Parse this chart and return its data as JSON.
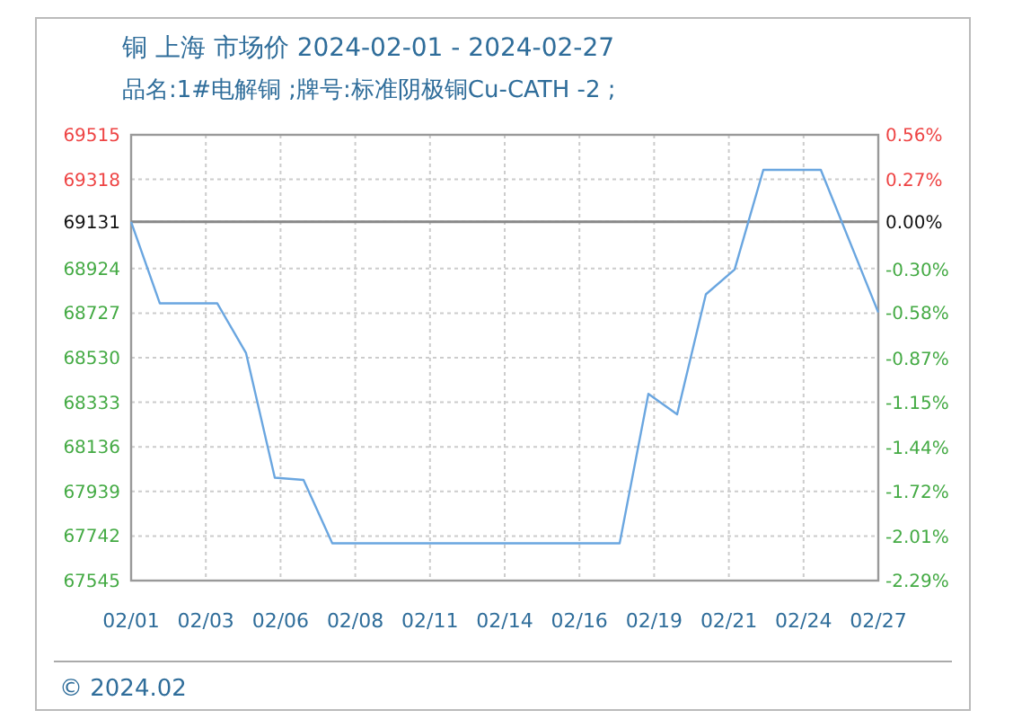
{
  "chart_data": {
    "type": "line",
    "title": "铜 上海 市场价 2024-02-01 - 2024-02-27",
    "subtitle": "品名:1#电解铜 ;牌号:标准阴极铜Cu-CATH -2 ;",
    "x": [
      "2024-02-01",
      "2024-02-02",
      "2024-02-04",
      "2024-02-05",
      "2024-02-06",
      "2024-02-07",
      "2024-02-08",
      "2024-02-18",
      "2024-02-19",
      "2024-02-20",
      "2024-02-21",
      "2024-02-22",
      "2024-02-23",
      "2024-02-25",
      "2024-02-27"
    ],
    "series": [
      {
        "color": "#6aa6e0",
        "values": [
          69130,
          68770,
          68770,
          68550,
          68000,
          67990,
          67710,
          67710,
          68370,
          68280,
          68810,
          68920,
          69360,
          69360,
          68730
        ]
      }
    ],
    "xlim": [
      "2024-02-01",
      "2024-02-27"
    ],
    "xticks": [
      {
        "value": "2024-02-01",
        "label": "02/01"
      },
      {
        "value": "2024-02-03T14:24",
        "label": "02/03"
      },
      {
        "value": "2024-02-06T04:48",
        "label": "02/06"
      },
      {
        "value": "2024-02-08T19:12",
        "label": "02/08"
      },
      {
        "value": "2024-02-11T09:36",
        "label": "02/11"
      },
      {
        "value": "2024-02-14",
        "label": "02/14"
      },
      {
        "value": "2024-02-16T14:24",
        "label": "02/16"
      },
      {
        "value": "2024-02-19T04:48",
        "label": "02/19"
      },
      {
        "value": "2024-02-21T19:12",
        "label": "02/21"
      },
      {
        "value": "2024-02-24T09:36",
        "label": "02/24"
      },
      {
        "value": "2024-02-27",
        "label": "02/27"
      }
    ],
    "ylim": [
      67545,
      69515
    ],
    "yticks": [
      67545,
      67742,
      67939,
      68136,
      68333,
      68530,
      68727,
      68924,
      69131,
      69318,
      69515
    ],
    "y2lim": [
      -2.29,
      0.56
    ],
    "y2ticks": [
      {
        "value": -2.29,
        "label": "-2.29%"
      },
      {
        "value": -2.01,
        "label": "-2.01%"
      },
      {
        "value": -1.72,
        "label": "-1.72%"
      },
      {
        "value": -1.44,
        "label": "-1.44%"
      },
      {
        "value": -1.15,
        "label": "-1.15%"
      },
      {
        "value": -0.87,
        "label": "-0.87%"
      },
      {
        "value": -0.58,
        "label": "-0.58%"
      },
      {
        "value": -0.3,
        "label": "-0.30%"
      },
      {
        "value": 0,
        "label": "0.00%"
      },
      {
        "value": 0.27,
        "label": "0.27%"
      },
      {
        "value": 0.56,
        "label": "0.56%"
      }
    ],
    "ref_lines": [
      {
        "axis": "y",
        "value": 69131,
        "color": "#888888"
      }
    ],
    "grid": true,
    "marker": "none",
    "line_style": "solid",
    "annotations": [
      "© 2024.02"
    ]
  }
}
